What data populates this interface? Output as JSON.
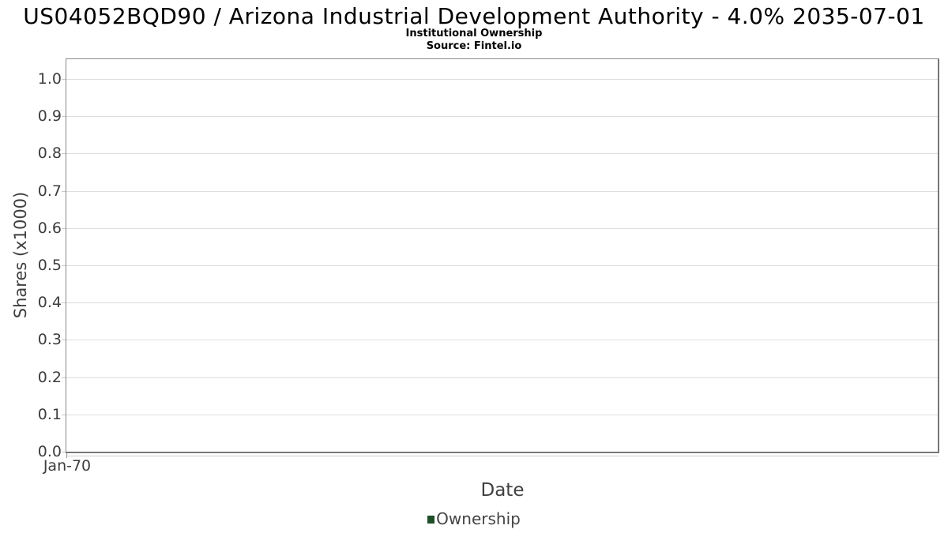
{
  "header": {
    "title": "US04052BQD90 / Arizona Industrial Development Authority - 4.0% 2035-07-01",
    "subtitle": "Institutional Ownership",
    "source": "Source: Fintel.io"
  },
  "chart_data": {
    "type": "line",
    "title": "US04052BQD90 / Arizona Industrial Development Authority - 4.0% 2035-07-01",
    "subtitle": "Institutional Ownership",
    "source": "Source: Fintel.io",
    "xlabel": "Date",
    "ylabel": "Shares (x1000)",
    "x_tick_labels": [
      "Jan-70"
    ],
    "y_tick_labels": [
      "0.0",
      "0.1",
      "0.2",
      "0.3",
      "0.4",
      "0.5",
      "0.6",
      "0.7",
      "0.8",
      "0.9",
      "1.0"
    ],
    "ylim": [
      0.0,
      1.05
    ],
    "grid": true,
    "legend_position": "bottom-center",
    "series": [
      {
        "name": "Ownership",
        "color": "#1e4e28",
        "x": [],
        "values": []
      }
    ]
  },
  "colors": {
    "gridline": "#dedede",
    "plot_border": "#808080",
    "axis_text": "#3d3d3d",
    "title_text": "#000000",
    "legend_marker": "#1e4e28"
  }
}
